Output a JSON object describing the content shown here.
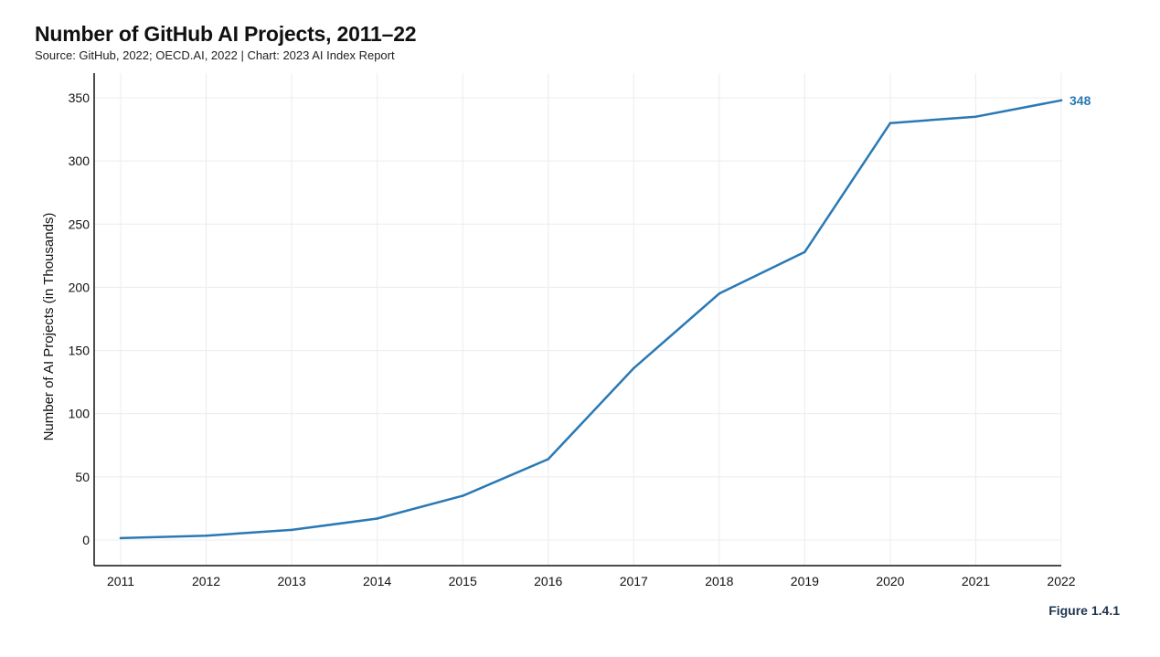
{
  "header": {
    "title": "Number of GitHub AI Projects, 2011–22",
    "subtitle": "Source: GitHub, 2022; OECD.AI, 2022 | Chart: 2023 AI Index Report"
  },
  "footer": {
    "figure_label": "Figure 1.4.1"
  },
  "chart_data": {
    "type": "line",
    "title": "Number of GitHub AI Projects, 2011–22",
    "xlabel": "",
    "ylabel": "Number of AI Projects (in Thousands)",
    "x": [
      2011,
      2012,
      2013,
      2014,
      2015,
      2016,
      2017,
      2018,
      2019,
      2020,
      2021,
      2022
    ],
    "series": [
      {
        "values": [
          1.5,
          3.5,
          8,
          17,
          35,
          64,
          136,
          195,
          228,
          330,
          335,
          348
        ]
      }
    ],
    "ylim": [
      0,
      350
    ],
    "yticks": [
      0,
      50,
      100,
      150,
      200,
      250,
      300,
      350
    ],
    "end_label": "348",
    "grid": true,
    "color": "#2a79b5"
  }
}
